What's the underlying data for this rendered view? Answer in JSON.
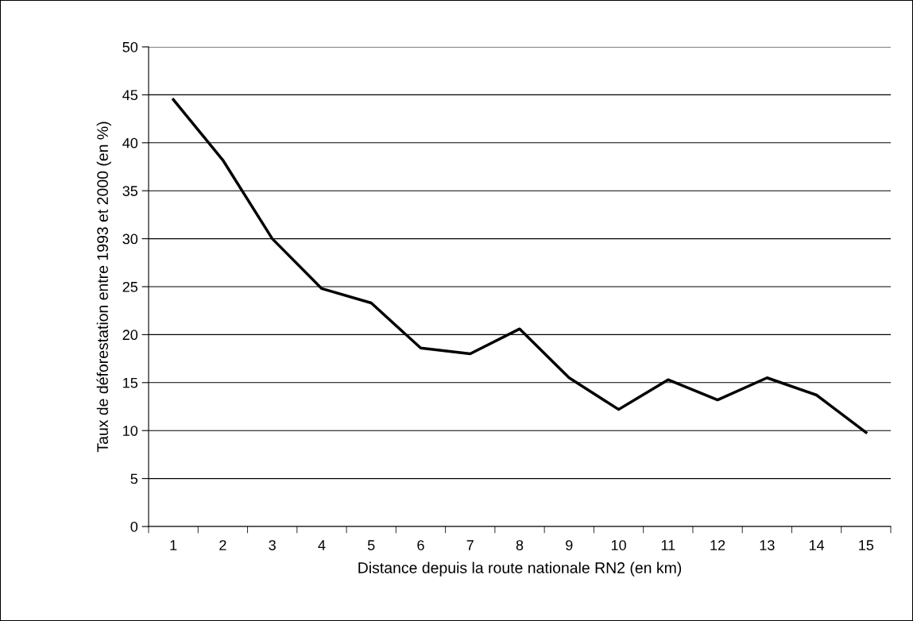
{
  "chart_data": {
    "type": "line",
    "xlabel": "Distance depuis la route nationale RN2 (en km)",
    "ylabel": "Taux de déforestation entre 1993 et 2000 (en %)",
    "categories": [
      "1",
      "2",
      "3",
      "4",
      "5",
      "6",
      "7",
      "8",
      "9",
      "10",
      "11",
      "12",
      "13",
      "14",
      "15"
    ],
    "series": [
      {
        "color": "#000000",
        "values": [
          44.5,
          38.2,
          30.0,
          24.8,
          23.3,
          18.6,
          18.0,
          20.6,
          15.5,
          12.2,
          15.3,
          13.2,
          15.5,
          13.7,
          9.8
        ]
      }
    ],
    "ylim": [
      0,
      50
    ],
    "yticks": [
      0,
      5,
      10,
      15,
      20,
      25,
      30,
      35,
      40,
      45,
      50
    ],
    "grid": "y",
    "marker": "none",
    "line_style": "solid"
  }
}
